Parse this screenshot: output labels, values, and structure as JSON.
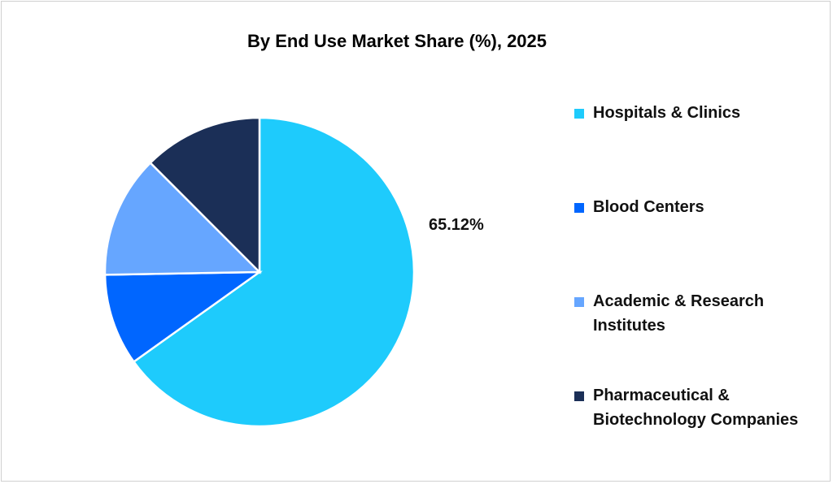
{
  "chart_data": {
    "type": "pie",
    "title": "By End Use Market Share (%), 2025",
    "categories": [
      "Hospitals & Clinics",
      "Blood Centers",
      "Academic & Research Institutes",
      "Pharmaceutical & Biotechnology Companies"
    ],
    "values": [
      65.12,
      9.6,
      12.8,
      12.48
    ],
    "colors": [
      "#1ECBFC",
      "#0066FF",
      "#66A6FF",
      "#1B2F57"
    ],
    "data_labels": [
      "65.12%",
      "",
      "",
      ""
    ],
    "legend_position": "right"
  }
}
